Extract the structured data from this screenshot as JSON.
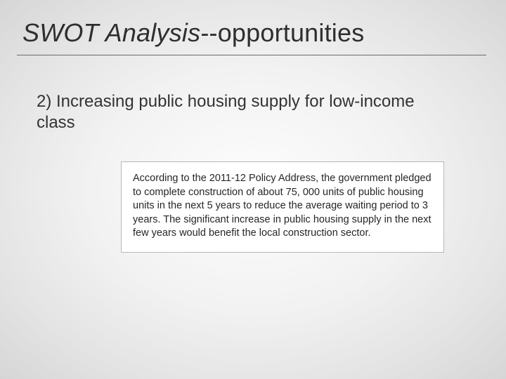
{
  "slide": {
    "title_italic": "SWOT Analysis",
    "title_rest": "--opportunities",
    "title_fontsize": 36,
    "title_color": "#2e2e2e",
    "underline_color": "#6a6a6a",
    "subheading": "2) Increasing public housing supply for low-income class",
    "subheading_fontsize": 24,
    "box": {
      "text": "According to the 2011-12 Policy Address, the government pledged to complete construction of about 75, 000 units of public housing units in the next 5 years to reduce the average waiting period to 3 years. The significant increase in public housing supply in the next few years would benefit the local construction sector.",
      "background_color": "#ffffff",
      "border_color": "#b8b8b8",
      "fontsize": 14.5,
      "text_color": "#262626"
    },
    "background_gradient": {
      "center": "#fdfdfd",
      "mid": "#e4e4e4",
      "edge": "#d6d6d6"
    }
  }
}
